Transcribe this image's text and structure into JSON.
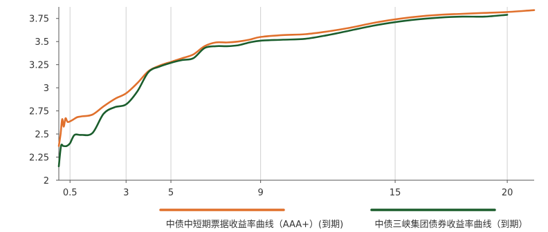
{
  "chart_data": {
    "type": "line",
    "title": "",
    "xlabel": "",
    "ylabel": "",
    "xlim": [
      0,
      21.2
    ],
    "ylim": [
      2,
      3.875
    ],
    "x_ticks": [
      0.5,
      3,
      5,
      9,
      15,
      20
    ],
    "x_tick_labels": [
      "0.5",
      "3",
      "5",
      "9",
      "15",
      "20"
    ],
    "y_ticks": [
      2,
      2.25,
      2.5,
      2.75,
      3,
      3.25,
      3.5,
      3.75
    ],
    "y_tick_labels": [
      "2",
      "2.25",
      "2.5",
      "2.75",
      "3",
      "3.25",
      "3.5",
      "3.75"
    ],
    "grid": "vertical",
    "legend_position": "bottom",
    "series": [
      {
        "name": "中债中短期票据收益率曲线（AAA+）(到期)",
        "color": "#e0702c",
        "points": [
          [
            0.0,
            2.37
          ],
          [
            0.08,
            2.5
          ],
          [
            0.15,
            2.66
          ],
          [
            0.22,
            2.58
          ],
          [
            0.3,
            2.67
          ],
          [
            0.4,
            2.63
          ],
          [
            0.6,
            2.65
          ],
          [
            0.8,
            2.68
          ],
          [
            1.0,
            2.69
          ],
          [
            1.5,
            2.71
          ],
          [
            2.0,
            2.8
          ],
          [
            2.5,
            2.88
          ],
          [
            3.0,
            2.94
          ],
          [
            3.5,
            3.05
          ],
          [
            4.0,
            3.18
          ],
          [
            4.5,
            3.24
          ],
          [
            5.0,
            3.28
          ],
          [
            5.5,
            3.32
          ],
          [
            6.0,
            3.36
          ],
          [
            6.5,
            3.45
          ],
          [
            7.0,
            3.49
          ],
          [
            7.5,
            3.49
          ],
          [
            8.0,
            3.5
          ],
          [
            8.5,
            3.52
          ],
          [
            9.0,
            3.55
          ],
          [
            10.0,
            3.57
          ],
          [
            11.0,
            3.58
          ],
          [
            12.0,
            3.61
          ],
          [
            13.0,
            3.65
          ],
          [
            14.0,
            3.7
          ],
          [
            15.0,
            3.74
          ],
          [
            16.0,
            3.77
          ],
          [
            17.0,
            3.79
          ],
          [
            18.0,
            3.8
          ],
          [
            19.0,
            3.81
          ],
          [
            20.0,
            3.82
          ],
          [
            21.2,
            3.84
          ]
        ]
      },
      {
        "name": "中债三峡集团债券收益率曲线（到期）",
        "color": "#1a5d2c",
        "points": [
          [
            0.0,
            2.15
          ],
          [
            0.1,
            2.37
          ],
          [
            0.2,
            2.37
          ],
          [
            0.35,
            2.37
          ],
          [
            0.5,
            2.4
          ],
          [
            0.7,
            2.49
          ],
          [
            1.0,
            2.49
          ],
          [
            1.5,
            2.51
          ],
          [
            2.0,
            2.72
          ],
          [
            2.5,
            2.79
          ],
          [
            3.0,
            2.82
          ],
          [
            3.5,
            2.96
          ],
          [
            4.0,
            3.17
          ],
          [
            4.5,
            3.23
          ],
          [
            5.0,
            3.27
          ],
          [
            5.5,
            3.3
          ],
          [
            6.0,
            3.32
          ],
          [
            6.5,
            3.43
          ],
          [
            7.0,
            3.45
          ],
          [
            7.5,
            3.45
          ],
          [
            8.0,
            3.46
          ],
          [
            8.5,
            3.49
          ],
          [
            9.0,
            3.51
          ],
          [
            10.0,
            3.52
          ],
          [
            11.0,
            3.53
          ],
          [
            12.0,
            3.57
          ],
          [
            13.0,
            3.62
          ],
          [
            14.0,
            3.67
          ],
          [
            15.0,
            3.71
          ],
          [
            16.0,
            3.74
          ],
          [
            17.0,
            3.76
          ],
          [
            18.0,
            3.77
          ],
          [
            19.0,
            3.77
          ],
          [
            20.0,
            3.79
          ]
        ]
      }
    ]
  }
}
